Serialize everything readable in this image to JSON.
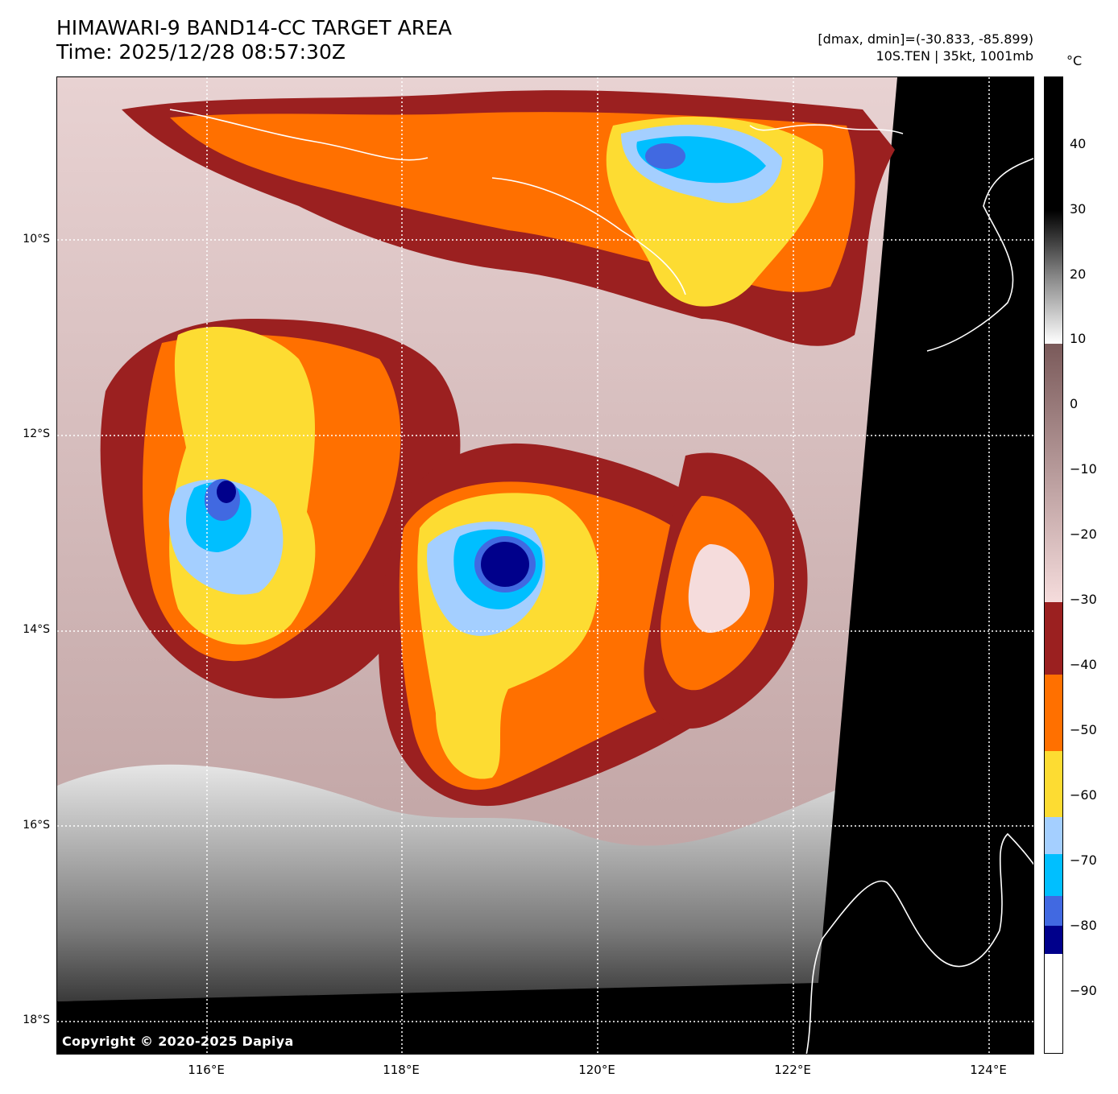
{
  "header": {
    "title_line1": "HIMAWARI-9 BAND14-CC TARGET AREA",
    "title_line2": "Time: 2025/12/28 08:57:30Z",
    "info_line1": "[dmax, dmin]=(-30.833, -85.899)",
    "info_line2": "10S.TEN | 35kt, 1001mb"
  },
  "map": {
    "copyright": "Copyright © 2020-2025 Dapiya",
    "lat_labels": [
      "10°S",
      "12°S",
      "14°S",
      "16°S",
      "18°S"
    ],
    "lon_labels": [
      "116°E",
      "118°E",
      "120°E",
      "122°E",
      "124°E"
    ]
  },
  "colorbar": {
    "unit": "°C",
    "ticks": [
      "40",
      "30",
      "20",
      "10",
      "0",
      "−10",
      "−20",
      "−30",
      "−40",
      "−50",
      "−60",
      "−70",
      "−80",
      "−90"
    ],
    "colors": {
      "cold_navy": "#00008b",
      "royal_blue": "#4169e1",
      "sky_blue": "#00bfff",
      "light_blue": "#a4cfff",
      "yellow": "#fddc32",
      "orange": "#ff7000",
      "dark_red": "#9b2020",
      "pink": "#f5dcdc",
      "mauve": "#8a6a6a",
      "black": "#000000"
    }
  }
}
